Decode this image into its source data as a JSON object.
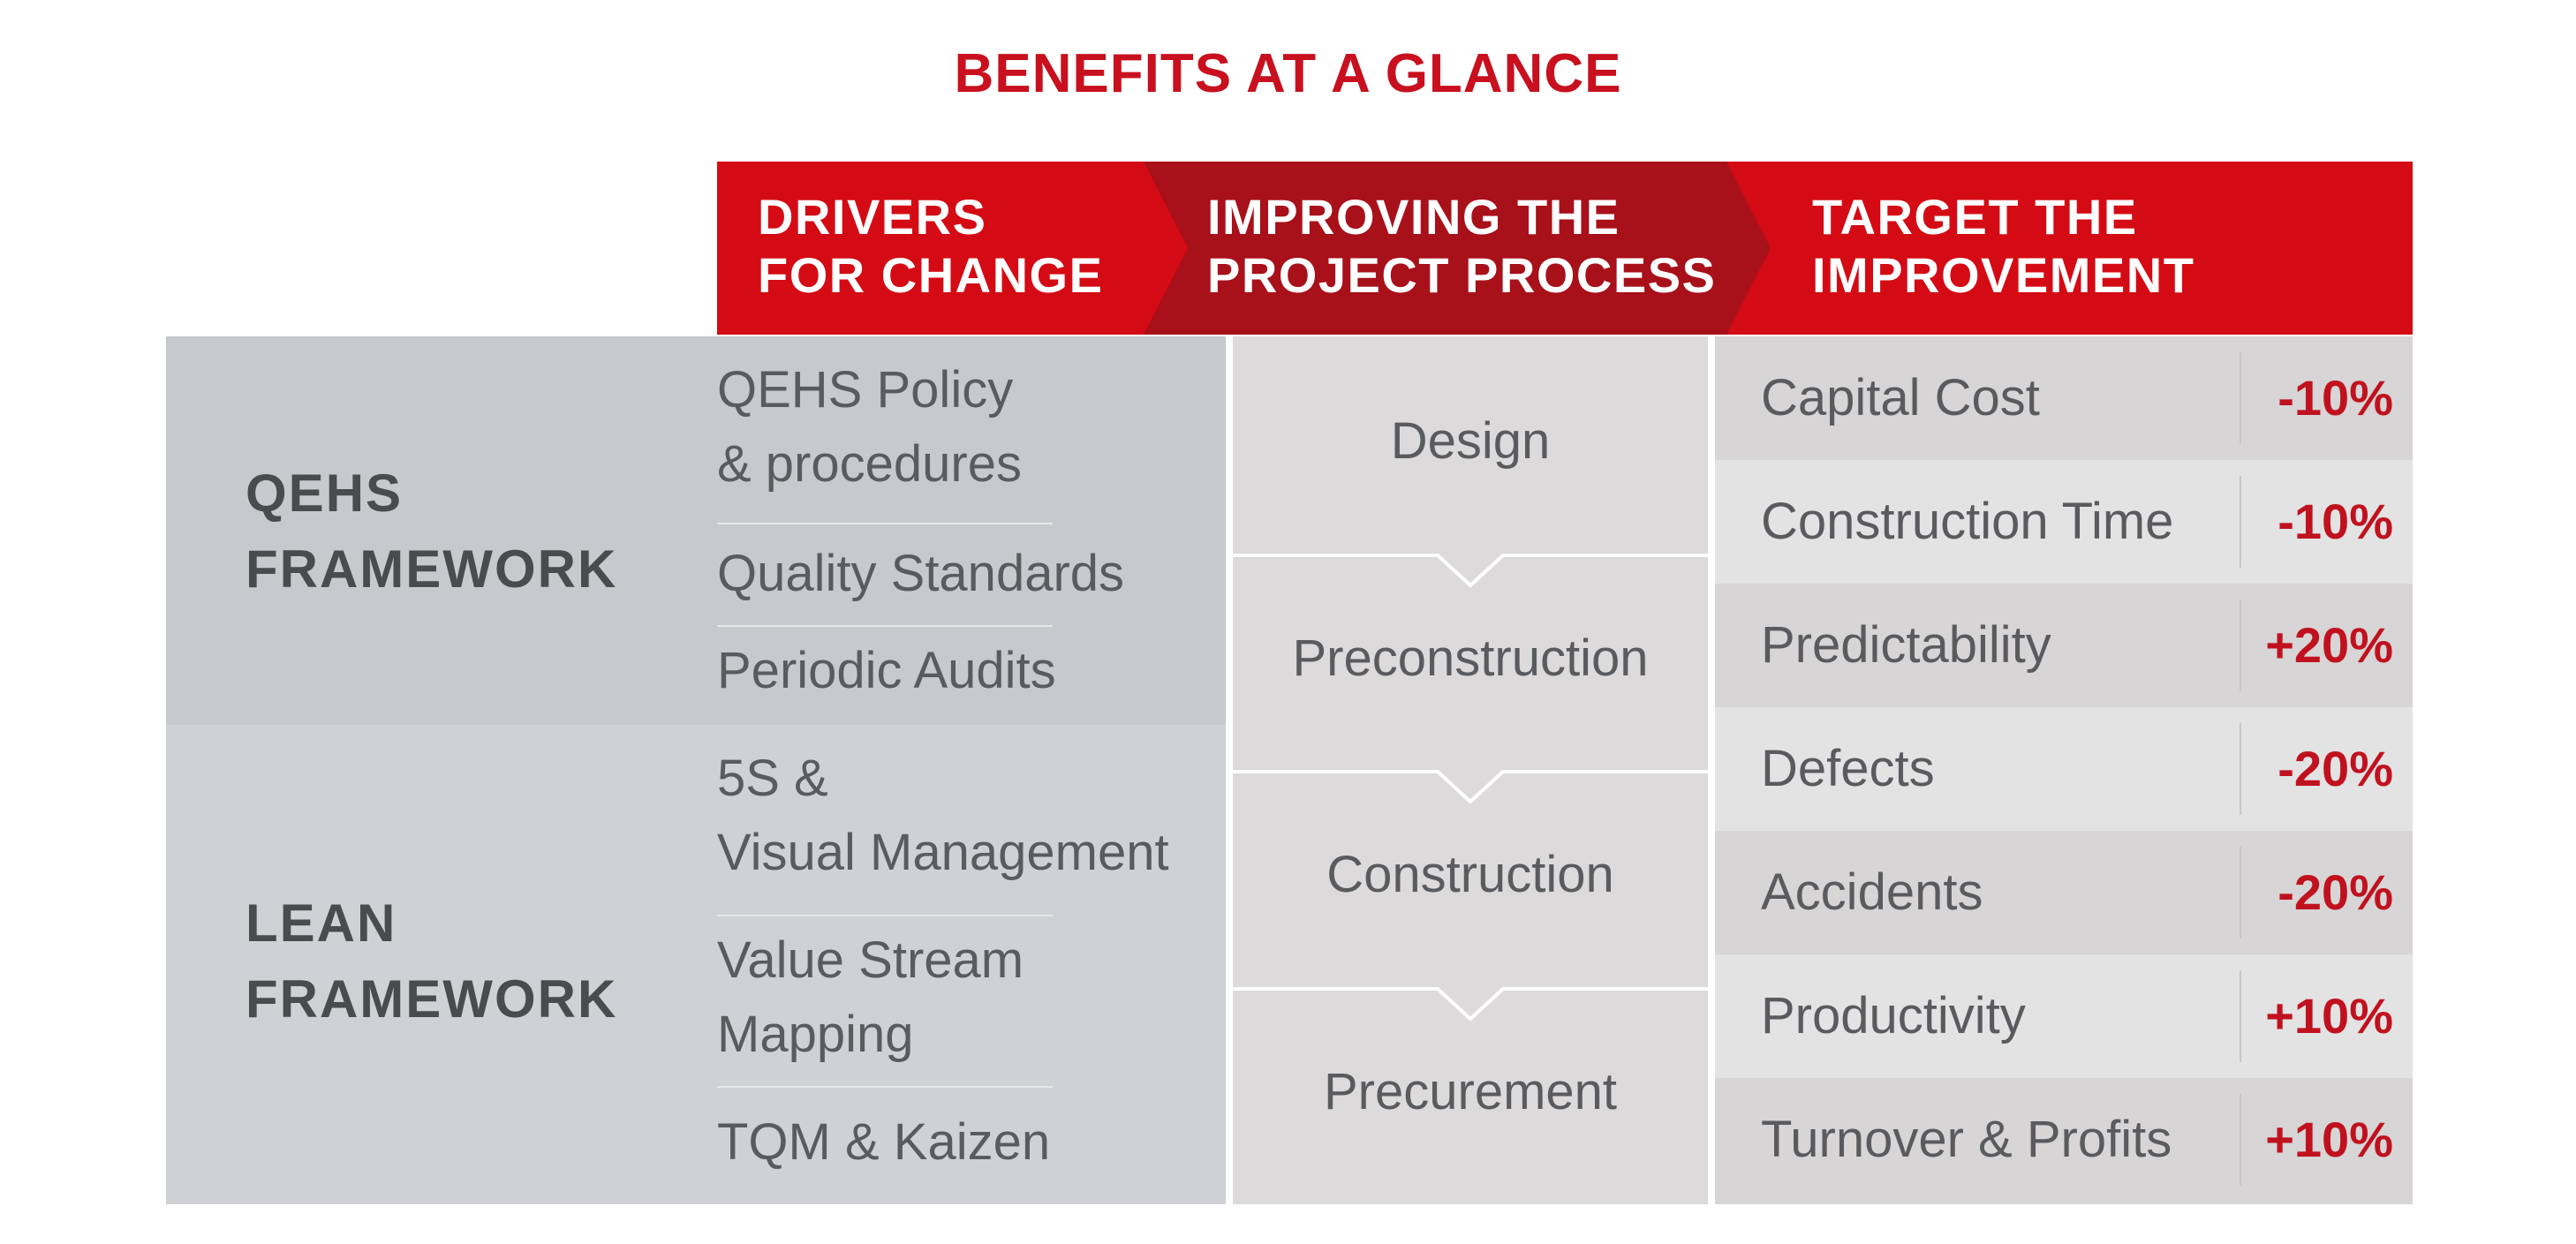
{
  "title": "BENEFITS AT A GLANCE",
  "colors": {
    "brand_red": "#d40b14",
    "dark_red": "#a8101a",
    "value_red": "#c0121e",
    "framework_gray": "#c7c9cc",
    "text_gray": "#5a5b5e"
  },
  "header": {
    "drivers": "DRIVERS\nFOR CHANGE",
    "process": "IMPROVING THE\nPROJECT PROCESS",
    "target": "TARGET THE\nIMPROVEMENT"
  },
  "frameworks": [
    {
      "label": "QEHS\nFRAMEWORK",
      "drivers": [
        "QEHS Policy\n& procedures",
        "Quality Standards",
        "Periodic Audits"
      ]
    },
    {
      "label": "LEAN\nFRAMEWORK",
      "drivers": [
        "5S &\nVisual Management",
        "Value Stream\nMapping",
        "TQM & Kaizen"
      ]
    }
  ],
  "process_steps": [
    "Design",
    "Preconstruction",
    "Construction",
    "Precurement"
  ],
  "improvements": [
    {
      "label": "Capital Cost",
      "value": "-10%"
    },
    {
      "label": "Construction Time",
      "value": "-10%"
    },
    {
      "label": "Predictability",
      "value": "+20%"
    },
    {
      "label": "Defects",
      "value": "-20%"
    },
    {
      "label": "Accidents",
      "value": "-20%"
    },
    {
      "label": "Productivity",
      "value": "+10%"
    },
    {
      "label": "Turnover & Profits",
      "value": "+10%"
    }
  ]
}
